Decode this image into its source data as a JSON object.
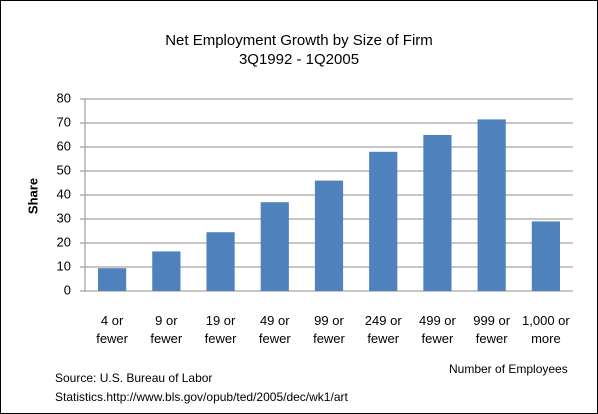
{
  "chart_data": {
    "type": "bar",
    "title": "Net Employment Growth by Size of Firm",
    "subtitle": "3Q1992 - 1Q2005",
    "y_label": "Share",
    "x_label": "Number of Employees",
    "source": "Source: U.S. Bureau of Labor Statistics.http://www.bls.gov/opub/ted/2005/dec/wk1/art",
    "categories": [
      "4 or fewer",
      "9 or fewer",
      "19 or fewer",
      "49 or fewer",
      "99 or fewer",
      "249 or fewer",
      "499 or fewer",
      "999 or fewer",
      "1,000 or more"
    ],
    "values": [
      9.5,
      16.5,
      24.5,
      37,
      46,
      58,
      65,
      71.5,
      29
    ],
    "color": "#4f81bd",
    "ylim": [
      0,
      80
    ],
    "yticks": [
      0,
      10,
      20,
      30,
      40,
      50,
      60,
      70,
      80
    ],
    "grid": true
  }
}
